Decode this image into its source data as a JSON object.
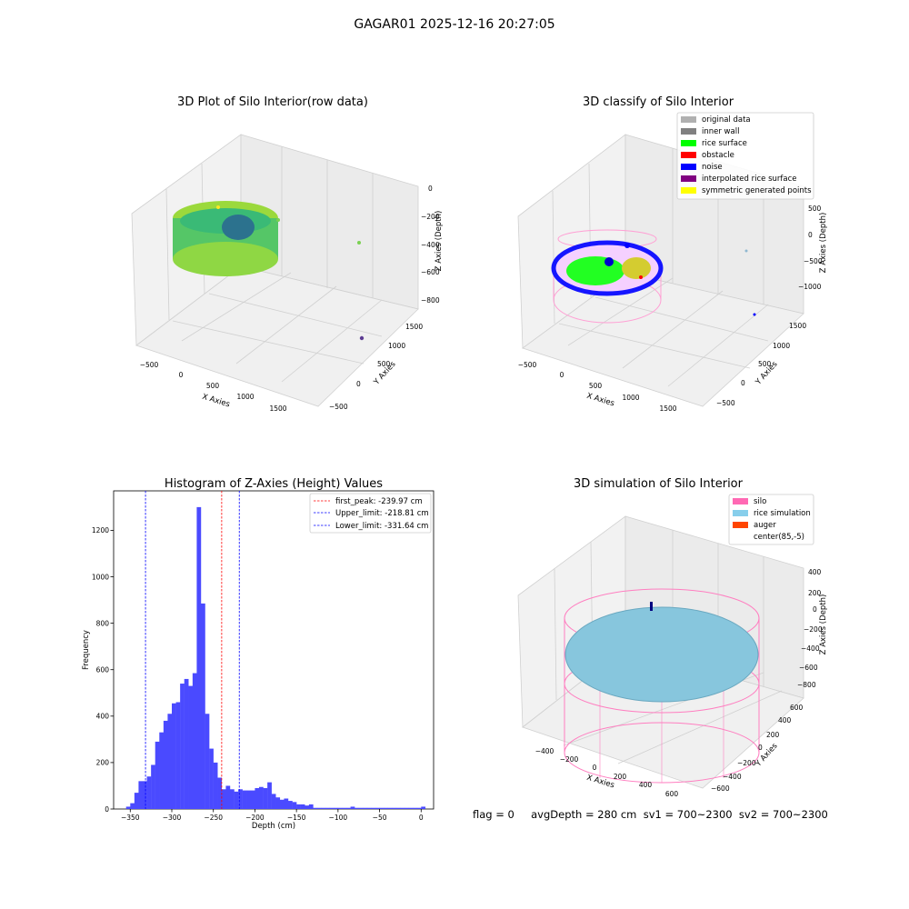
{
  "suptitle": "GAGAR01 2025-12-16 20:27:05",
  "chart_data": [
    {
      "type": "scatter3d",
      "title": "3D Plot of Silo Interior(row data)",
      "xlabel": "X Axies",
      "ylabel": "Y Axies",
      "zlabel": "Z Axies (Depth)",
      "x_ticks": [
        "−500",
        "0",
        "500",
        "1000",
        "1500"
      ],
      "y_ticks": [
        "−500",
        "0",
        "500",
        "1000",
        "1500"
      ],
      "z_ticks": [
        "0",
        "−200",
        "−400",
        "−600",
        "−800"
      ],
      "colormap": "viridis",
      "description_points": "ring of points (cylinder wall) near x≈0..500, y≈-500..500, z≈-200..-400"
    },
    {
      "type": "scatter3d",
      "title": "3D classify of Silo Interior",
      "xlabel": "X Axies",
      "ylabel": "Y Axies",
      "zlabel": "Z Axies (Depth)",
      "x_ticks": [
        "−500",
        "0",
        "500",
        "1000",
        "1500"
      ],
      "y_ticks": [
        "−500",
        "0",
        "500",
        "1000",
        "1500"
      ],
      "z_ticks": [
        "500",
        "0",
        "−500",
        "−1000"
      ],
      "legend": [
        {
          "name": "original data",
          "color": "#b0b0b0"
        },
        {
          "name": "inner wall",
          "color": "#808080"
        },
        {
          "name": "rice surface",
          "color": "#00ff00"
        },
        {
          "name": "obstacle",
          "color": "#ff0000"
        },
        {
          "name": "noise",
          "color": "#0000ff"
        },
        {
          "name": "interpolated rice surface",
          "color": "#800080"
        },
        {
          "name": "symmetric generated points",
          "color": "#ffff00"
        }
      ],
      "legend_position": "top-right"
    },
    {
      "type": "bar",
      "title": "Histogram of Z-Axies (Height) Values",
      "xlabel": "Depth (cm)",
      "ylabel": "Frequency",
      "bin_width": 5,
      "bin_starts": [
        -355,
        -350,
        -345,
        -340,
        -335,
        -330,
        -325,
        -320,
        -315,
        -310,
        -305,
        -300,
        -295,
        -290,
        -285,
        -280,
        -275,
        -270,
        -265,
        -260,
        -255,
        -250,
        -245,
        -240,
        -235,
        -230,
        -225,
        -220,
        -215,
        -210,
        -205,
        -200,
        -195,
        -190,
        -185,
        -180,
        -175,
        -170,
        -165,
        -160,
        -155,
        -150,
        -145,
        -140,
        -135,
        -130,
        -125,
        -120,
        -115,
        -110,
        -105,
        -100,
        -95,
        -90,
        -85,
        -80,
        -75,
        -70,
        -65,
        -60,
        -55,
        -50,
        -45,
        -40,
        -35,
        -30,
        -25,
        -20,
        -15,
        -10,
        -5,
        0
      ],
      "values": [
        10,
        25,
        70,
        120,
        120,
        140,
        190,
        290,
        330,
        380,
        410,
        455,
        460,
        540,
        560,
        530,
        585,
        1300,
        885,
        410,
        260,
        200,
        135,
        85,
        100,
        85,
        75,
        85,
        80,
        80,
        80,
        90,
        95,
        90,
        115,
        65,
        50,
        40,
        45,
        35,
        30,
        20,
        20,
        15,
        20,
        5,
        5,
        5,
        5,
        5,
        5,
        5,
        5,
        5,
        10,
        5,
        5,
        5,
        5,
        5,
        5,
        5,
        5,
        5,
        5,
        5,
        5,
        5,
        5,
        5,
        5,
        10
      ],
      "xlim": [
        -370,
        15
      ],
      "ylim": [
        0,
        1370
      ],
      "x_ticks": [
        -350,
        -300,
        -250,
        -200,
        -150,
        -100,
        -50,
        0
      ],
      "x_tick_labels": [
        "−350",
        "−300",
        "−250",
        "−200",
        "−150",
        "−100",
        "−50",
        "0"
      ],
      "y_ticks": [
        0,
        200,
        400,
        600,
        800,
        1000,
        1200
      ],
      "bar_color": "#4a4aff",
      "lines": [
        {
          "name": "first_peak: -239.97 cm",
          "x": -239.97,
          "color": "#ff0000"
        },
        {
          "name": "Upper_limit: -218.81 cm",
          "x": -218.81,
          "color": "#0000ff"
        },
        {
          "name": "Lower_limit: -331.64 cm",
          "x": -331.64,
          "color": "#0000ff"
        }
      ],
      "legend_position": "top-right"
    },
    {
      "type": "surface3d",
      "title": "3D simulation of Silo Interior",
      "xlabel": "X Axies",
      "ylabel": "Y Axies",
      "zlabel": "Z Axies (Depth)",
      "x_ticks": [
        "−400",
        "−200",
        "0",
        "200",
        "400",
        "600"
      ],
      "y_ticks": [
        "−600",
        "−400",
        "−200",
        "0",
        "200",
        "400",
        "600"
      ],
      "z_ticks": [
        "400",
        "200",
        "0",
        "−200",
        "−400",
        "−600",
        "−800"
      ],
      "legend": [
        {
          "name": "silo",
          "color": "#ff69b4"
        },
        {
          "name": "rice simulation",
          "color": "#87ceeb"
        },
        {
          "name": "auger",
          "color": "#ff4500"
        },
        {
          "name": "center(85,-5)",
          "color": ""
        }
      ],
      "legend_position": "top-right"
    }
  ],
  "footer": "flag = 0     avgDepth = 280 cm  sv1 = 700~2300  sv2 = 700~2300"
}
